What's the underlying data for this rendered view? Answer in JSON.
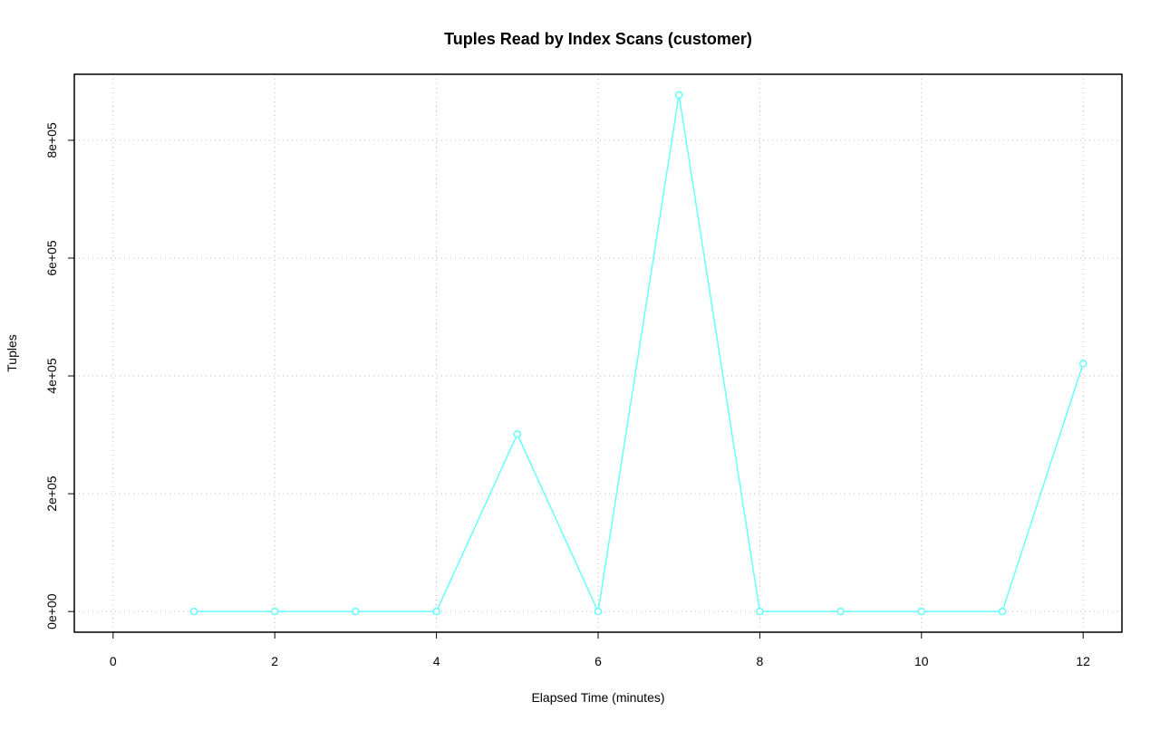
{
  "chart_data": {
    "type": "line",
    "title": "Tuples Read by Index Scans (customer)",
    "x_label": "Elapsed Time (minutes)",
    "y_label": "Tuples",
    "series": [
      {
        "name": "customer",
        "color": "#66ffff",
        "x": [
          1,
          2,
          3,
          4,
          5,
          6,
          7,
          8,
          9,
          10,
          11,
          12
        ],
        "values": [
          0,
          0,
          0,
          0,
          301000,
          0,
          877000,
          0,
          0,
          0,
          0,
          421000
        ]
      }
    ],
    "xlim": [
      -0.48,
      12.48
    ],
    "xticks": [
      0,
      2,
      4,
      6,
      8,
      10,
      12
    ],
    "ylim": [
      -35080,
      912080
    ],
    "yticks": [
      {
        "value": 0,
        "label": "0e+00"
      },
      {
        "value": 200000,
        "label": "2e+05"
      },
      {
        "value": 400000,
        "label": "4e+05"
      },
      {
        "value": 600000,
        "label": "6e+05"
      },
      {
        "value": 800000,
        "label": "8e+05"
      }
    ],
    "grid": true
  }
}
